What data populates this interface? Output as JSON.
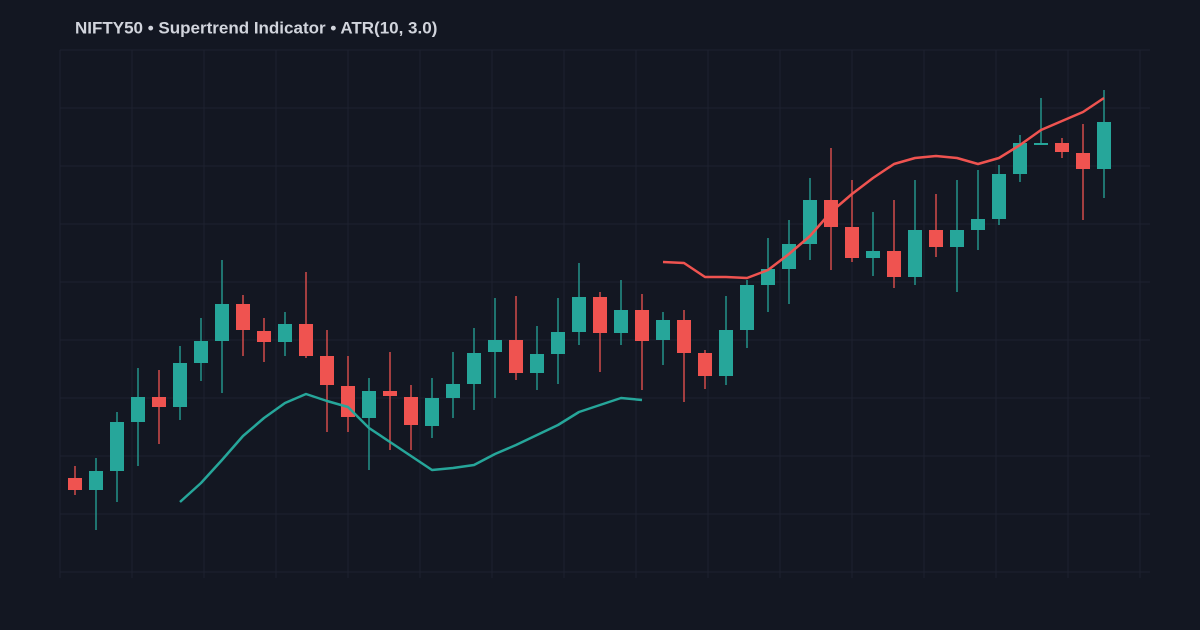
{
  "chart_data": {
    "type": "candlestick",
    "title": "NIFTY50 • Supertrend Indicator • ATR(10, 3.0)",
    "open": [
      94,
      82,
      101,
      150,
      175,
      165,
      209,
      231,
      268,
      241,
      230,
      248,
      216,
      186,
      154,
      181,
      175,
      146,
      174,
      188,
      220,
      232,
      199,
      218,
      240,
      275,
      239,
      262,
      232,
      252,
      219,
      196,
      242,
      287,
      303,
      328,
      372,
      345,
      314,
      321,
      295,
      342,
      325,
      342,
      353,
      398,
      427,
      429,
      419,
      403
    ],
    "high": [
      106,
      114,
      160,
      204,
      202,
      226,
      254,
      312,
      277,
      254,
      260,
      300,
      242,
      216,
      194,
      220,
      187,
      194,
      220,
      244,
      274,
      276,
      246,
      274,
      309,
      280,
      292,
      278,
      260,
      262,
      222,
      276,
      292,
      334,
      352,
      394,
      424,
      392,
      360,
      372,
      392,
      378,
      392,
      402,
      407,
      437,
      474,
      434,
      448,
      482
    ],
    "low": [
      77,
      42,
      70,
      106,
      128,
      152,
      191,
      179,
      216,
      210,
      216,
      214,
      140,
      140,
      102,
      122,
      122,
      134,
      154,
      162,
      174,
      192,
      182,
      188,
      227,
      200,
      227,
      182,
      207,
      170,
      183,
      187,
      224,
      260,
      268,
      312,
      302,
      310,
      296,
      284,
      287,
      315,
      280,
      322,
      347,
      390,
      427,
      414,
      352,
      374
    ],
    "close": [
      82,
      101,
      150,
      175,
      165,
      209,
      231,
      268,
      242,
      230,
      248,
      216,
      187,
      155,
      181,
      176,
      147,
      174,
      188,
      219,
      232,
      199,
      218,
      240,
      275,
      239,
      262,
      231,
      252,
      219,
      196,
      242,
      287,
      303,
      328,
      372,
      345,
      314,
      321,
      295,
      342,
      325,
      342,
      353,
      398,
      429,
      429,
      420,
      403,
      450
    ],
    "up_color": "#26a69a",
    "down_color": "#ef5350",
    "supertrend_up": [
      null,
      null,
      null,
      null,
      null,
      70,
      89,
      112,
      136,
      154,
      169,
      178,
      171,
      165,
      144,
      130,
      116,
      102,
      104,
      107,
      118,
      127,
      137,
      147,
      160,
      167,
      174,
      172,
      null,
      null,
      null,
      null,
      null,
      null,
      null,
      null,
      null,
      null,
      null,
      null,
      null,
      null,
      null,
      null,
      null,
      null,
      null,
      null,
      null,
      null
    ],
    "supertrend_down": [
      null,
      null,
      null,
      null,
      null,
      null,
      null,
      null,
      null,
      null,
      null,
      null,
      null,
      null,
      null,
      null,
      null,
      null,
      null,
      null,
      null,
      null,
      null,
      null,
      null,
      null,
      null,
      null,
      310,
      309,
      295,
      295,
      294,
      302,
      318,
      336,
      360,
      378,
      394,
      408,
      414,
      416,
      414,
      408,
      414,
      427,
      442,
      451,
      460,
      474
    ],
    "ylim": [
      0,
      522
    ],
    "yticks": [
      0,
      58,
      116,
      174,
      232,
      290,
      348,
      406,
      464,
      522
    ],
    "grid": true
  }
}
